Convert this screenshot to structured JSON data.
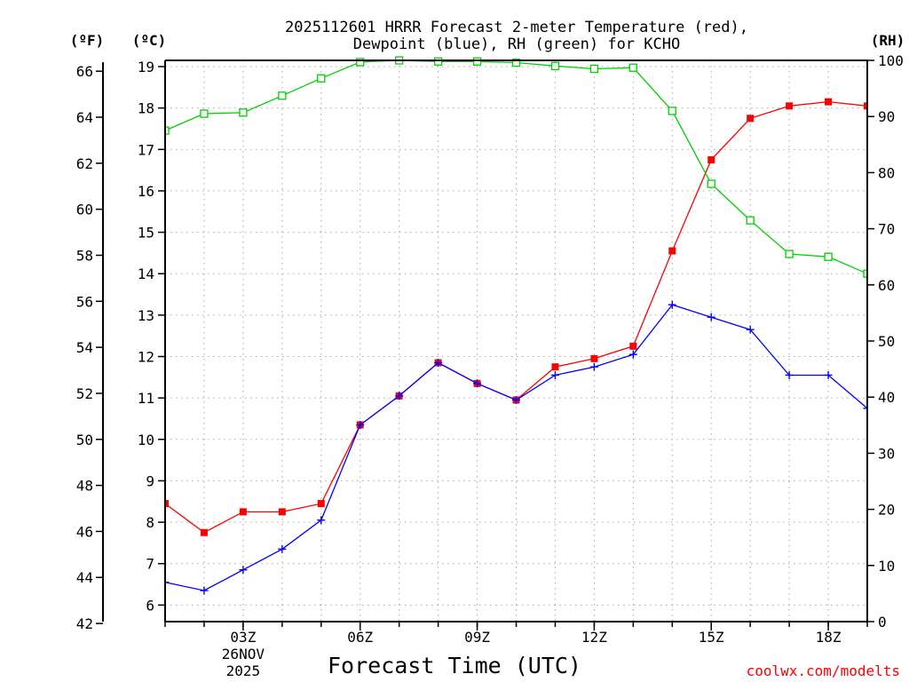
{
  "chart_data": {
    "type": "line",
    "title_line1": "2025112601 HRRR Forecast 2-meter Temperature (red),",
    "title_line2": "Dewpoint (blue), RH (green) for KCHO",
    "xlabel": "Forecast Time (UTC)",
    "credit": "coolwx.com/modelts",
    "units": {
      "f": "(ºF)",
      "c": "(ºC)",
      "rh": "(RH)"
    },
    "x_hours": [
      1,
      2,
      3,
      4,
      5,
      6,
      7,
      8,
      9,
      10,
      11,
      12,
      13,
      14,
      15,
      16,
      17,
      18,
      19
    ],
    "xlim": [
      1,
      19
    ],
    "x_ticks": [
      {
        "hour": 3,
        "label": "03Z"
      },
      {
        "hour": 6,
        "label": "06Z"
      },
      {
        "hour": 9,
        "label": "09Z"
      },
      {
        "hour": 12,
        "label": "12Z"
      },
      {
        "hour": 15,
        "label": "15Z"
      },
      {
        "hour": 18,
        "label": "18Z"
      }
    ],
    "date_label": {
      "hour": 3,
      "line1": "26NOV",
      "line2": "2025"
    },
    "y_celsius": {
      "lim": [
        5.6,
        19.15
      ],
      "ticks": [
        "6",
        "7",
        "8",
        "9",
        "10",
        "11",
        "12",
        "13",
        "14",
        "15",
        "16",
        "17",
        "18",
        "19"
      ]
    },
    "y_fahrenheit": {
      "ticks": [
        "42",
        "44",
        "46",
        "48",
        "50",
        "52",
        "54",
        "56",
        "58",
        "60",
        "62",
        "64",
        "66"
      ]
    },
    "y_rh": {
      "lim": [
        0,
        100
      ],
      "ticks": [
        "0",
        "10",
        "20",
        "30",
        "40",
        "50",
        "60",
        "70",
        "80",
        "90",
        "100"
      ]
    },
    "series": [
      {
        "name": "Temperature",
        "color": "#ff0000",
        "marker": "filled-square",
        "axis": "celsius",
        "values": [
          8.45,
          7.75,
          8.25,
          8.25,
          8.45,
          10.35,
          11.05,
          11.85,
          11.35,
          10.95,
          11.75,
          11.95,
          12.25,
          14.55,
          16.75,
          17.75,
          18.05,
          18.15,
          18.05
        ]
      },
      {
        "name": "Dewpoint",
        "color": "#0000ff",
        "marker": "plus",
        "axis": "celsius",
        "values": [
          6.55,
          6.35,
          6.85,
          7.35,
          8.05,
          10.35,
          11.05,
          11.85,
          11.35,
          10.95,
          11.55,
          11.75,
          12.05,
          13.25,
          12.95,
          12.65,
          11.55,
          11.55,
          10.75
        ]
      },
      {
        "name": "RH",
        "color": "#00d000",
        "marker": "open-square",
        "axis": "rh",
        "values": [
          87.5,
          90.5,
          90.7,
          93.7,
          96.8,
          99.7,
          100,
          99.8,
          99.8,
          99.6,
          99,
          98.5,
          98.7,
          91,
          78,
          71.5,
          65.5,
          65,
          62
        ]
      }
    ]
  }
}
